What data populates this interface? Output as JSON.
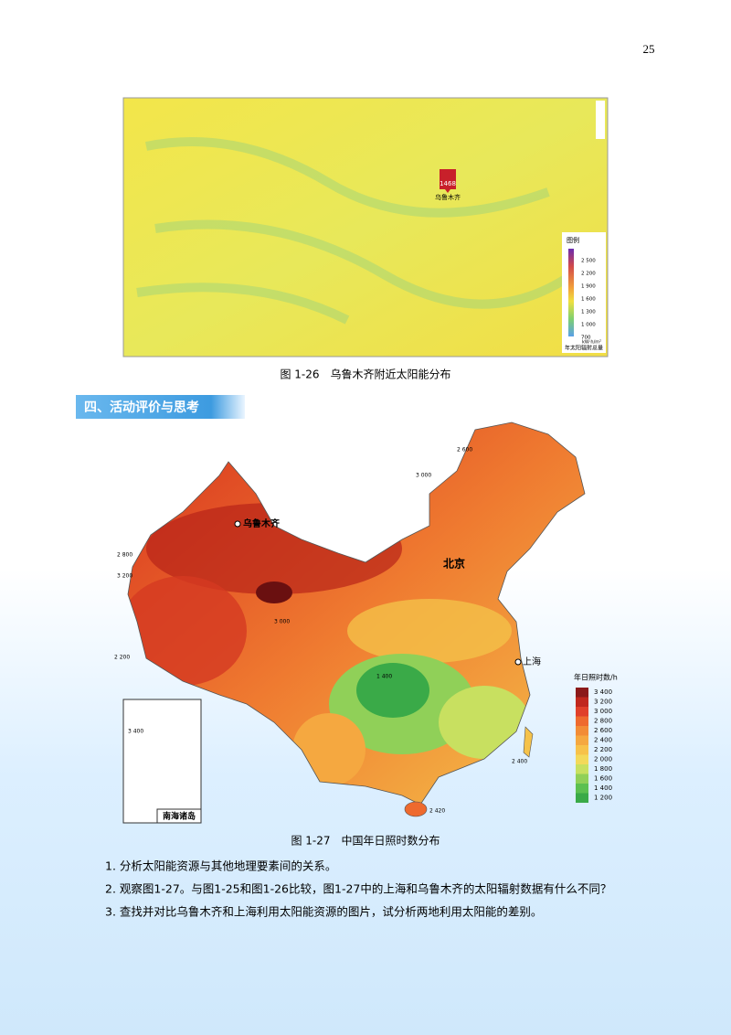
{
  "page_number": "25",
  "figure_1_26": {
    "marker_value": "1468",
    "marker_label": "乌鲁木齐",
    "legend": {
      "title": "图例",
      "ticks": [
        "2 500",
        "2 200",
        "1 900",
        "1 600",
        "1 300",
        "1 000",
        "700"
      ],
      "unit": "kW·h/m²",
      "caption": "年太阳辐射总量"
    },
    "caption": "图 1-26　乌鲁木齐附近太阳能分布"
  },
  "section_title": "四、活动评价与思考",
  "figure_1_27": {
    "city_labels": [
      "乌鲁木齐",
      "北京",
      "上海"
    ],
    "inset_label": "南海诸岛",
    "contour_labels": [
      "2 600",
      "3 000",
      "2 800",
      "3 200",
      "3 000",
      "2 400",
      "2 200",
      "1 400",
      "2 420",
      "3 400"
    ],
    "legend": {
      "title": "年日照时数/h",
      "items": [
        {
          "label": "3 400",
          "color": "#8b1a1a"
        },
        {
          "label": "3 200",
          "color": "#c0281e"
        },
        {
          "label": "3 000",
          "color": "#e0402a"
        },
        {
          "label": "2 800",
          "color": "#ee6a2e"
        },
        {
          "label": "2 600",
          "color": "#f28c36"
        },
        {
          "label": "2 400",
          "color": "#f5a840"
        },
        {
          "label": "2 200",
          "color": "#f7c24a"
        },
        {
          "label": "2 000",
          "color": "#f3d95a"
        },
        {
          "label": "1 800",
          "color": "#c8e060"
        },
        {
          "label": "1 600",
          "color": "#90d058"
        },
        {
          "label": "1 400",
          "color": "#5cc050"
        },
        {
          "label": "1 200",
          "color": "#3aaa48"
        }
      ]
    },
    "caption": "图 1-27　中国年日照时数分布"
  },
  "questions": [
    "1. 分析太阳能资源与其他地理要素间的关系。",
    "2. 观察图1-27。与图1-25和图1-26比较，图1-27中的上海和乌鲁木齐的太阳辐射数据有什么不同？",
    "3. 查找并对比乌鲁木齐和上海利用太阳能资源的图片，试分析两地利用太阳能的差别。"
  ]
}
